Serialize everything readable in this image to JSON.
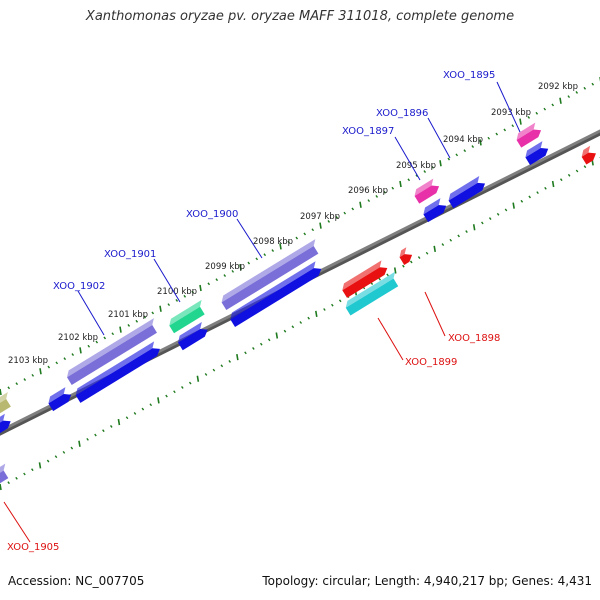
{
  "title": "Xanthomonas oryzae pv. oryzae MAFF 311018, complete genome",
  "footer": {
    "accession": "Accession: NC_007705",
    "summary": "Topology: circular; Length: 4,940,217 bp; Genes: 4,431"
  },
  "colors": {
    "forward_label": "#1a1acc",
    "reverse_label": "#dd1111",
    "backbone": "#7f7f7f",
    "tick": "#1f7a1f",
    "cds_blue": "#1010e0",
    "cds_purple": "#7a6fd8",
    "cds_green": "#22d690",
    "cds_magenta": "#e830a8",
    "cds_red": "#e81010",
    "cds_cyan": "#20c8d0",
    "cds_olive": "#b8b870"
  },
  "scale_labels": [
    "2092 kbp",
    "2093 kbp",
    "2094 kbp",
    "2095 kbp",
    "2096 kbp",
    "2097 kbp",
    "2098 kbp",
    "2099 kbp",
    "2100 kbp",
    "2101 kbp",
    "2102 kbp",
    "2103 kbp"
  ],
  "gene_labels": [
    {
      "name": "XOO_1895",
      "strand": "forward"
    },
    {
      "name": "XOO_1896",
      "strand": "forward"
    },
    {
      "name": "XOO_1897",
      "strand": "forward"
    },
    {
      "name": "XOO_1900",
      "strand": "forward"
    },
    {
      "name": "XOO_1901",
      "strand": "forward"
    },
    {
      "name": "XOO_1902",
      "strand": "forward"
    },
    {
      "name": "XOO_1898",
      "strand": "reverse"
    },
    {
      "name": "XOO_1899",
      "strand": "reverse"
    },
    {
      "name": "XOO_1905",
      "strand": "reverse"
    }
  ],
  "features": [
    {
      "id": "cds-1895-gene",
      "color": "cds_magenta"
    },
    {
      "id": "cds-1895-cds",
      "color": "cds_blue"
    },
    {
      "id": "cds-1896-cds",
      "color": "cds_blue"
    },
    {
      "id": "cds-1897-gene",
      "color": "cds_magenta"
    },
    {
      "id": "cds-1897-cds",
      "color": "cds_blue"
    },
    {
      "id": "cds-1900-gene",
      "color": "cds_purple"
    },
    {
      "id": "cds-1900-cds",
      "color": "cds_blue"
    },
    {
      "id": "cds-1901-gene",
      "color": "cds_green"
    },
    {
      "id": "cds-1901-cds",
      "color": "cds_blue"
    },
    {
      "id": "cds-1902-gene",
      "color": "cds_purple"
    },
    {
      "id": "cds-1902-cds",
      "color": "cds_blue"
    },
    {
      "id": "cds-olive",
      "color": "cds_olive"
    },
    {
      "id": "cds-left-a",
      "color": "cds_blue"
    },
    {
      "id": "cds-left-b",
      "color": "cds_blue"
    },
    {
      "id": "cds-1898-gene",
      "color": "cds_red"
    },
    {
      "id": "cds-1898-small",
      "color": "cds_red"
    },
    {
      "id": "cds-1899-gene",
      "color": "cds_cyan"
    },
    {
      "id": "cds-1895-reverse",
      "color": "cds_red"
    },
    {
      "id": "cds-1905-reverse",
      "color": "cds_purple"
    }
  ]
}
